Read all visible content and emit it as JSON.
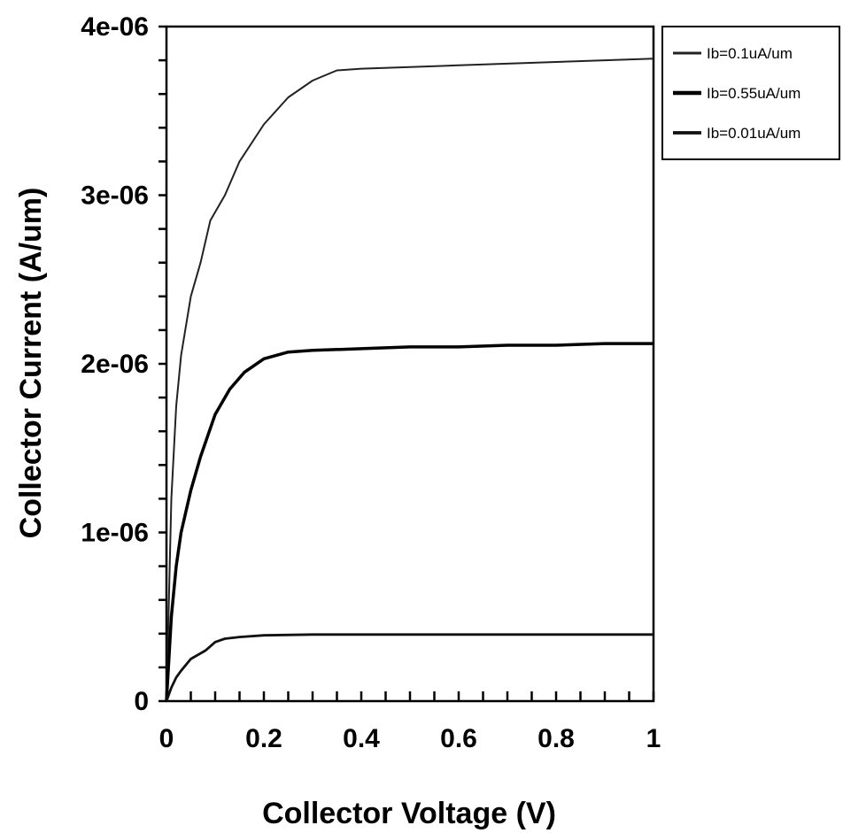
{
  "chart_data": {
    "type": "line",
    "title": "",
    "xlabel": "Collector Voltage (V)",
    "ylabel": "Collector Current (A/um)",
    "xlim": [
      0,
      1
    ],
    "ylim": [
      0,
      4e-06
    ],
    "xticks": [
      0,
      0.2,
      0.4,
      0.6,
      0.8,
      1
    ],
    "xtick_labels": [
      "0",
      "0.2",
      "0.4",
      "0.6",
      "0.8",
      "1"
    ],
    "yticks": [
      0,
      1e-06,
      2e-06,
      3e-06,
      4e-06
    ],
    "ytick_labels": [
      "0",
      "1e-06",
      "2e-06",
      "3e-06",
      "4e-06"
    ],
    "grid": false,
    "legend_position": "top-right, outside plot",
    "series": [
      {
        "name": "Ib=0.1uA/um",
        "x": [
          0,
          0.01,
          0.02,
          0.03,
          0.05,
          0.07,
          0.09,
          0.12,
          0.15,
          0.2,
          0.25,
          0.3,
          0.35,
          0.4,
          0.5,
          0.6,
          0.7,
          0.8,
          0.9,
          1.0
        ],
        "y": [
          0,
          1.2e-06,
          1.75e-06,
          2.05e-06,
          2.4e-06,
          2.6e-06,
          2.85e-06,
          3e-06,
          3.2e-06,
          3.42e-06,
          3.58e-06,
          3.68e-06,
          3.74e-06,
          3.75e-06,
          3.76e-06,
          3.77e-06,
          3.78e-06,
          3.79e-06,
          3.8e-06,
          3.81e-06
        ]
      },
      {
        "name": "Ib=0.55uA/um",
        "x": [
          0,
          0.01,
          0.02,
          0.03,
          0.05,
          0.07,
          0.1,
          0.13,
          0.16,
          0.2,
          0.25,
          0.3,
          0.4,
          0.5,
          0.6,
          0.7,
          0.8,
          0.9,
          1.0
        ],
        "y": [
          0,
          5e-07,
          8e-07,
          1e-06,
          1.25e-06,
          1.45e-06,
          1.7e-06,
          1.85e-06,
          1.95e-06,
          2.03e-06,
          2.07e-06,
          2.08e-06,
          2.09e-06,
          2.1e-06,
          2.1e-06,
          2.11e-06,
          2.11e-06,
          2.12e-06,
          2.12e-06
        ]
      },
      {
        "name": "Ib=0.01uA/um",
        "x": [
          0,
          0.01,
          0.02,
          0.03,
          0.05,
          0.08,
          0.1,
          0.12,
          0.15,
          0.2,
          0.3,
          0.5,
          0.7,
          0.9,
          1.0
        ],
        "y": [
          0,
          8e-08,
          1.4e-07,
          1.8e-07,
          2.5e-07,
          3e-07,
          3.5e-07,
          3.7e-07,
          3.8e-07,
          3.9e-07,
          3.95e-07,
          3.95e-07,
          3.95e-07,
          3.95e-07,
          3.95e-07
        ]
      }
    ]
  },
  "colors": {
    "background": "#ffffff",
    "axis": "#000000",
    "series": [
      "#222222",
      "#000000",
      "#111111"
    ]
  }
}
